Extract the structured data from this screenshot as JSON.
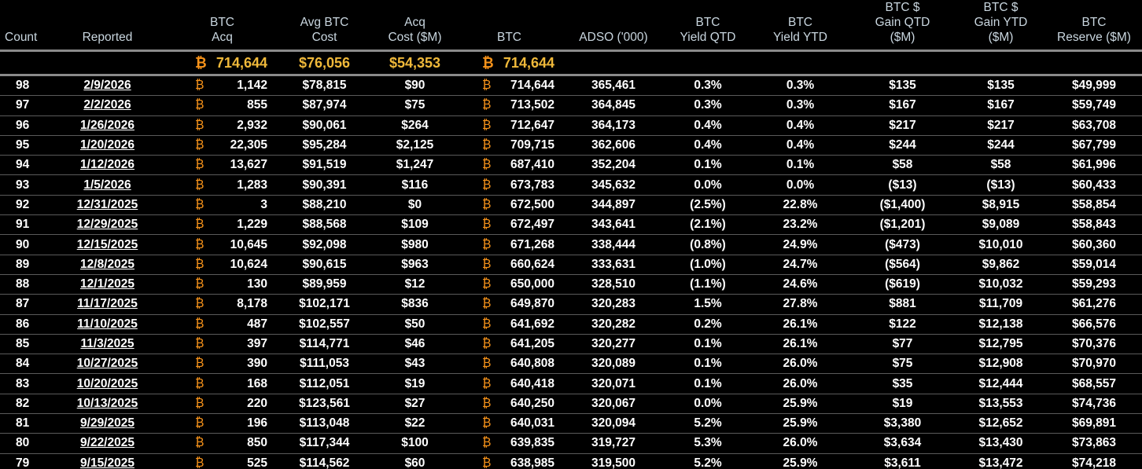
{
  "columns": [
    "Count",
    "Reported",
    "BTC\nAcq",
    "Avg BTC\nCost",
    "Acq\nCost ($M)",
    "BTC",
    "ADSO ('000)",
    "BTC\nYield QTD",
    "BTC\nYield YTD",
    "BTC $\nGain QTD\n($M)",
    "BTC $\nGain YTD\n($M)",
    "BTC\nReserve ($M)"
  ],
  "totals": {
    "btc_acq": "714,644",
    "avg_cost": "$76,056",
    "acq_cost": "$54,353",
    "btc": "714,644"
  },
  "btc_symbol": "₿",
  "colors": {
    "header_text": "#c9d6df",
    "totals": "#f0b93a",
    "btc_symbol": "#f7931a",
    "background": "#000000"
  },
  "rows": [
    [
      "98",
      "2/9/2026",
      "1,142",
      "$78,815",
      "$90",
      "714,644",
      "365,461",
      "0.3%",
      "0.3%",
      "$135",
      "$135",
      "$49,999"
    ],
    [
      "97",
      "2/2/2026",
      "855",
      "$87,974",
      "$75",
      "713,502",
      "364,845",
      "0.3%",
      "0.3%",
      "$167",
      "$167",
      "$59,749"
    ],
    [
      "96",
      "1/26/2026",
      "2,932",
      "$90,061",
      "$264",
      "712,647",
      "364,173",
      "0.4%",
      "0.4%",
      "$217",
      "$217",
      "$63,708"
    ],
    [
      "95",
      "1/20/2026",
      "22,305",
      "$95,284",
      "$2,125",
      "709,715",
      "362,606",
      "0.4%",
      "0.4%",
      "$244",
      "$244",
      "$67,799"
    ],
    [
      "94",
      "1/12/2026",
      "13,627",
      "$91,519",
      "$1,247",
      "687,410",
      "352,204",
      "0.1%",
      "0.1%",
      "$58",
      "$58",
      "$61,996"
    ],
    [
      "93",
      "1/5/2026",
      "1,283",
      "$90,391",
      "$116",
      "673,783",
      "345,632",
      "0.0%",
      "0.0%",
      "($13)",
      "($13)",
      "$60,433"
    ],
    [
      "92",
      "12/31/2025",
      "3",
      "$88,210",
      "$0",
      "672,500",
      "344,897",
      "(2.5%)",
      "22.8%",
      "($1,400)",
      "$8,915",
      "$58,854"
    ],
    [
      "91",
      "12/29/2025",
      "1,229",
      "$88,568",
      "$109",
      "672,497",
      "343,641",
      "(2.1%)",
      "23.2%",
      "($1,201)",
      "$9,089",
      "$58,843"
    ],
    [
      "90",
      "12/15/2025",
      "10,645",
      "$92,098",
      "$980",
      "671,268",
      "338,444",
      "(0.8%)",
      "24.9%",
      "($473)",
      "$10,010",
      "$60,360"
    ],
    [
      "89",
      "12/8/2025",
      "10,624",
      "$90,615",
      "$963",
      "660,624",
      "333,631",
      "(1.0%)",
      "24.7%",
      "($564)",
      "$9,862",
      "$59,014"
    ],
    [
      "88",
      "12/1/2025",
      "130",
      "$89,959",
      "$12",
      "650,000",
      "328,510",
      "(1.1%)",
      "24.6%",
      "($619)",
      "$10,032",
      "$59,293"
    ],
    [
      "87",
      "11/17/2025",
      "8,178",
      "$102,171",
      "$836",
      "649,870",
      "320,283",
      "1.5%",
      "27.8%",
      "$881",
      "$11,709",
      "$61,276"
    ],
    [
      "86",
      "11/10/2025",
      "487",
      "$102,557",
      "$50",
      "641,692",
      "320,282",
      "0.2%",
      "26.1%",
      "$122",
      "$12,138",
      "$66,576"
    ],
    [
      "85",
      "11/3/2025",
      "397",
      "$114,771",
      "$46",
      "641,205",
      "320,277",
      "0.1%",
      "26.1%",
      "$77",
      "$12,795",
      "$70,376"
    ],
    [
      "84",
      "10/27/2025",
      "390",
      "$111,053",
      "$43",
      "640,808",
      "320,089",
      "0.1%",
      "26.0%",
      "$75",
      "$12,908",
      "$70,970"
    ],
    [
      "83",
      "10/20/2025",
      "168",
      "$112,051",
      "$19",
      "640,418",
      "320,071",
      "0.1%",
      "26.0%",
      "$35",
      "$12,444",
      "$68,557"
    ],
    [
      "82",
      "10/13/2025",
      "220",
      "$123,561",
      "$27",
      "640,250",
      "320,067",
      "0.0%",
      "25.9%",
      "$19",
      "$13,553",
      "$74,736"
    ],
    [
      "81",
      "9/29/2025",
      "196",
      "$113,048",
      "$22",
      "640,031",
      "320,094",
      "5.2%",
      "25.9%",
      "$3,380",
      "$12,652",
      "$69,891"
    ],
    [
      "80",
      "9/22/2025",
      "850",
      "$117,344",
      "$100",
      "639,835",
      "319,727",
      "5.3%",
      "26.0%",
      "$3,634",
      "$13,430",
      "$73,863"
    ],
    [
      "79",
      "9/15/2025",
      "525",
      "$114,562",
      "$60",
      "638,985",
      "319,500",
      "5.2%",
      "25.9%",
      "$3,611",
      "$13,472",
      "$74,218"
    ]
  ]
}
